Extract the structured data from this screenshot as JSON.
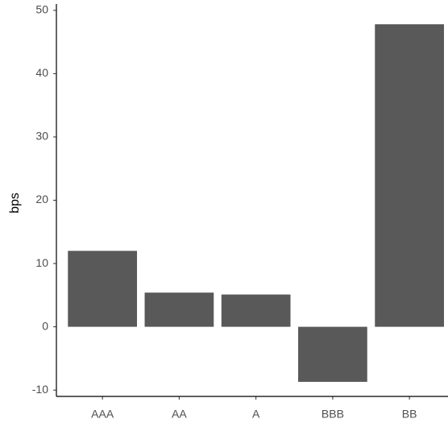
{
  "chart_data": {
    "type": "bar",
    "y_label": "bps",
    "categories": [
      "AAA",
      "AA",
      "A",
      "BBB",
      "BB"
    ],
    "values": [
      12.0,
      5.4,
      5.1,
      -8.7,
      47.8
    ],
    "color": "#595959",
    "ylim": [
      -11,
      51
    ],
    "yticks": [
      -10,
      0,
      10,
      20,
      30,
      40,
      50
    ],
    "grid": false
  }
}
